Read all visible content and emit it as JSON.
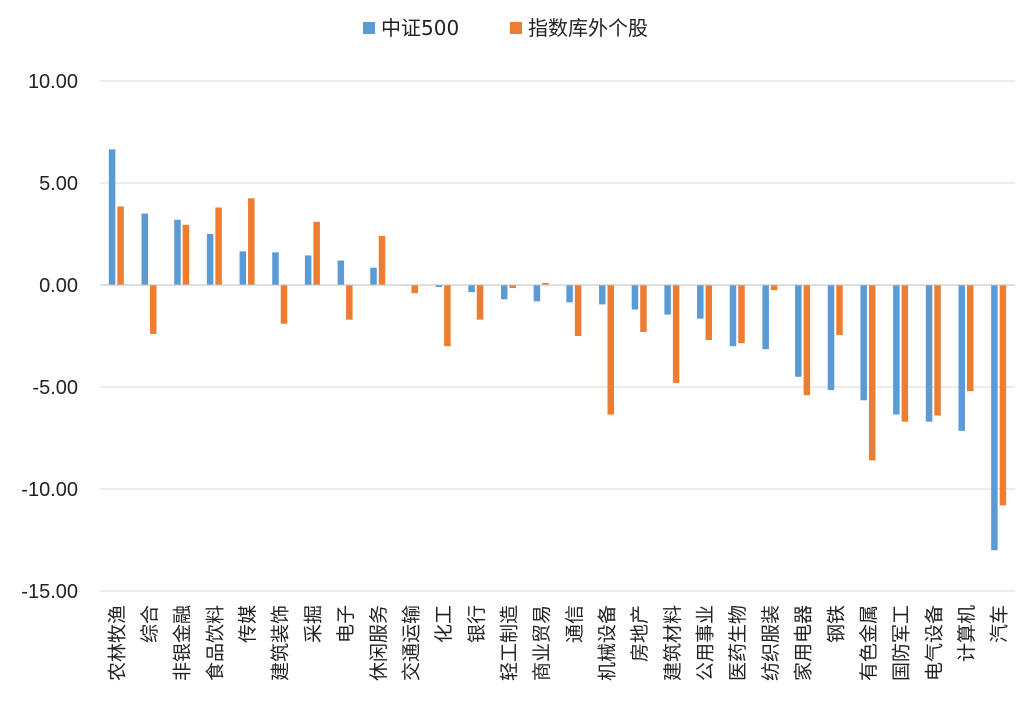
{
  "chart_data": {
    "type": "bar",
    "title": "",
    "xlabel": "",
    "ylabel": "",
    "ylim": [
      -15,
      10
    ],
    "yticks": [
      10,
      5,
      0,
      -5,
      -10,
      -15
    ],
    "ytick_labels": [
      "10.00",
      "5.00",
      "0.00",
      "-5.00",
      "-10.00",
      "-15.00"
    ],
    "grid": true,
    "legend_position": "top-center",
    "categories": [
      "农林牧渔",
      "综合",
      "非银金融",
      "食品饮料",
      "传媒",
      "建筑装饰",
      "采掘",
      "电子",
      "休闲服务",
      "交通运输",
      "化工",
      "银行",
      "轻工制造",
      "商业贸易",
      "通信",
      "机械设备",
      "房地产",
      "建筑材料",
      "公用事业",
      "医药生物",
      "纺织服装",
      "家用电器",
      "钢铁",
      "有色金属",
      "国防军工",
      "电气设备",
      "计算机",
      "汽车"
    ],
    "series": [
      {
        "name": "中证500",
        "color": "#5B9BD5",
        "values": [
          6.65,
          3.5,
          3.2,
          2.5,
          1.65,
          1.6,
          1.45,
          1.2,
          0.85,
          0.0,
          -0.1,
          -0.35,
          -0.7,
          -0.8,
          -0.85,
          -0.95,
          -1.2,
          -1.45,
          -1.65,
          -3.0,
          -3.15,
          -4.5,
          -5.15,
          -5.65,
          -6.35,
          -6.7,
          -7.15,
          -13.0
        ]
      },
      {
        "name": "指数库外个股",
        "color": "#ED7D31",
        "values": [
          3.85,
          -2.4,
          2.95,
          3.8,
          4.25,
          -1.9,
          3.1,
          -1.7,
          2.4,
          -0.4,
          -3.0,
          -1.7,
          -0.15,
          0.1,
          -2.5,
          -6.35,
          -2.3,
          -4.8,
          -2.7,
          -2.85,
          -0.25,
          -5.4,
          -2.45,
          -8.6,
          -6.7,
          -6.4,
          -5.2,
          -10.8
        ]
      }
    ]
  }
}
